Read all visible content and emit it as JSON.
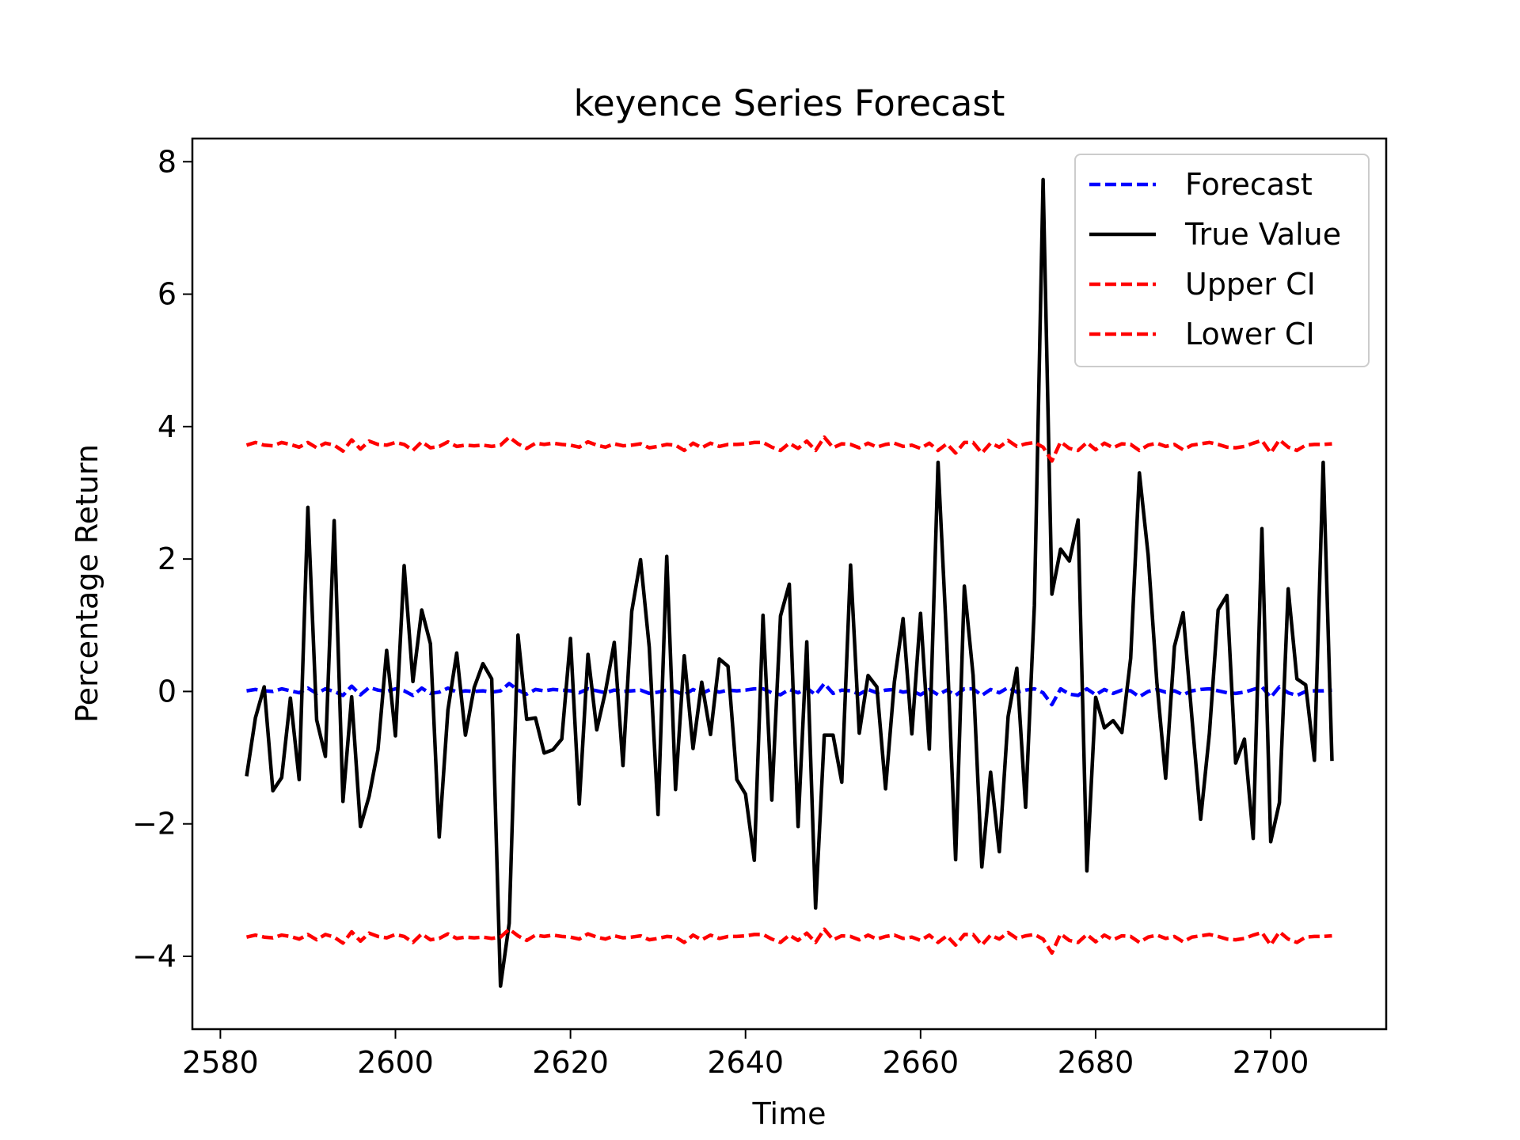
{
  "chart_data": {
    "type": "line",
    "title": "keyence Series Forecast",
    "xlabel": "Time",
    "ylabel": "Percentage Return",
    "xlim": [
      2576.8,
      2713.2
    ],
    "ylim": [
      -5.1,
      8.35
    ],
    "xticks": [
      2580,
      2600,
      2620,
      2640,
      2660,
      2680,
      2700
    ],
    "xtick_labels": [
      "2580",
      "2600",
      "2620",
      "2640",
      "2660",
      "2680",
      "2700"
    ],
    "yticks": [
      -4,
      -2,
      0,
      2,
      4,
      6,
      8
    ],
    "ytick_labels": [
      "−4",
      "−2",
      "0",
      "2",
      "4",
      "6",
      "8"
    ],
    "grid": false,
    "legend_position": "top-right",
    "x": [
      2583,
      2584,
      2585,
      2586,
      2587,
      2588,
      2589,
      2590,
      2591,
      2592,
      2593,
      2594,
      2595,
      2596,
      2597,
      2598,
      2599,
      2600,
      2601,
      2602,
      2603,
      2604,
      2605,
      2606,
      2607,
      2608,
      2609,
      2610,
      2611,
      2612,
      2613,
      2614,
      2615,
      2616,
      2617,
      2618,
      2619,
      2620,
      2621,
      2622,
      2623,
      2624,
      2625,
      2626,
      2627,
      2628,
      2629,
      2630,
      2631,
      2632,
      2633,
      2634,
      2635,
      2636,
      2637,
      2638,
      2639,
      2640,
      2641,
      2642,
      2643,
      2644,
      2645,
      2646,
      2647,
      2648,
      2649,
      2650,
      2651,
      2652,
      2653,
      2654,
      2655,
      2656,
      2657,
      2658,
      2659,
      2660,
      2661,
      2662,
      2663,
      2664,
      2665,
      2666,
      2667,
      2668,
      2669,
      2670,
      2671,
      2672,
      2673,
      2674,
      2675,
      2676,
      2677,
      2678,
      2679,
      2680,
      2681,
      2682,
      2683,
      2684,
      2685,
      2686,
      2687,
      2688,
      2689,
      2690,
      2691,
      2692,
      2693,
      2694,
      2695,
      2696,
      2697,
      2698,
      2699,
      2700,
      2701,
      2702,
      2703,
      2704,
      2705,
      2706,
      2707
    ],
    "series": [
      {
        "name": "Forecast",
        "color": "#0000ff",
        "dash": "dashed",
        "values": [
          0.01,
          0.03,
          0.01,
          0.0,
          0.04,
          0.01,
          -0.02,
          0.05,
          -0.03,
          0.04,
          0.0,
          -0.06,
          0.08,
          -0.05,
          0.06,
          0.02,
          0.0,
          0.04,
          0.01,
          -0.06,
          0.05,
          -0.03,
          -0.01,
          0.05,
          -0.01,
          0.01,
          0.0,
          0.01,
          -0.01,
          0.01,
          0.12,
          0.02,
          -0.04,
          0.03,
          0.01,
          0.03,
          0.02,
          0.01,
          -0.02,
          0.04,
          0.01,
          -0.02,
          0.02,
          0.0,
          0.01,
          0.02,
          -0.03,
          -0.01,
          0.02,
          0.0,
          -0.05,
          0.03,
          -0.03,
          0.03,
          -0.01,
          0.02,
          0.01,
          0.02,
          0.04,
          0.04,
          -0.02,
          -0.05,
          0.03,
          -0.02,
          0.05,
          -0.05,
          0.12,
          -0.03,
          0.02,
          0.01,
          -0.04,
          0.03,
          -0.02,
          0.02,
          0.03,
          -0.01,
          0.01,
          -0.05,
          0.03,
          -0.05,
          0.02,
          -0.06,
          0.04,
          0.04,
          -0.06,
          0.03,
          -0.02,
          0.06,
          -0.01,
          0.02,
          0.04,
          -0.02,
          -0.2,
          0.04,
          -0.04,
          -0.06,
          0.04,
          -0.05,
          0.03,
          -0.03,
          0.02,
          0.01,
          -0.08,
          0.0,
          0.03,
          -0.01,
          0.01,
          -0.05,
          0.01,
          0.03,
          0.04,
          0.01,
          -0.02,
          -0.03,
          -0.01,
          0.03,
          0.07,
          -0.09,
          0.07,
          -0.02,
          -0.06,
          0.0,
          0.01,
          0.01,
          0.02
        ]
      },
      {
        "name": "True Value",
        "color": "#000000",
        "dash": "solid",
        "values": [
          -1.28,
          -0.4,
          0.07,
          -1.5,
          -1.3,
          -0.1,
          -1.33,
          2.78,
          -0.43,
          -0.98,
          2.58,
          -1.66,
          -0.08,
          -2.04,
          -1.58,
          -0.88,
          0.62,
          -0.67,
          1.9,
          0.15,
          1.23,
          0.72,
          -2.2,
          -0.28,
          0.58,
          -0.66,
          0.06,
          0.42,
          0.19,
          -4.45,
          -3.5,
          0.85,
          -0.42,
          -0.4,
          -0.93,
          -0.88,
          -0.72,
          0.8,
          -1.7,
          0.56,
          -0.58,
          0.0,
          0.74,
          -1.12,
          1.21,
          1.99,
          0.67,
          -1.86,
          2.04,
          -1.48,
          0.54,
          -0.86,
          0.14,
          -0.65,
          0.49,
          0.38,
          -1.33,
          -1.55,
          -2.55,
          1.15,
          -1.64,
          1.14,
          1.62,
          -2.04,
          0.75,
          -3.27,
          -0.66,
          -0.66,
          -1.37,
          1.91,
          -0.63,
          0.24,
          0.07,
          -1.47,
          0.14,
          1.1,
          -0.64,
          1.18,
          -0.87,
          3.46,
          0.72,
          -2.54,
          1.59,
          0.24,
          -2.65,
          -1.22,
          -2.42,
          -0.38,
          0.35,
          -1.75,
          1.3,
          7.73,
          1.47,
          2.15,
          1.97,
          2.59,
          -2.71,
          -0.09,
          -0.55,
          -0.44,
          -0.62,
          0.5,
          3.3,
          2.06,
          0.14,
          -1.31,
          0.68,
          1.19,
          -0.4,
          -1.93,
          -0.63,
          1.23,
          1.45,
          -1.08,
          -0.72,
          -2.22,
          2.46,
          -2.27,
          -1.68,
          1.55,
          0.19,
          0.1,
          -1.04,
          3.46,
          -1.05
        ]
      },
      {
        "name": "Upper CI",
        "color": "#ff0000",
        "dash": "dashed",
        "values": [
          3.72,
          3.76,
          3.72,
          3.71,
          3.76,
          3.73,
          3.69,
          3.76,
          3.68,
          3.75,
          3.72,
          3.63,
          3.8,
          3.66,
          3.78,
          3.73,
          3.72,
          3.76,
          3.73,
          3.64,
          3.77,
          3.68,
          3.7,
          3.77,
          3.7,
          3.72,
          3.71,
          3.72,
          3.7,
          3.72,
          3.84,
          3.74,
          3.67,
          3.75,
          3.73,
          3.75,
          3.73,
          3.72,
          3.69,
          3.77,
          3.72,
          3.69,
          3.74,
          3.71,
          3.72,
          3.74,
          3.68,
          3.7,
          3.73,
          3.72,
          3.64,
          3.75,
          3.68,
          3.75,
          3.7,
          3.73,
          3.73,
          3.74,
          3.76,
          3.76,
          3.69,
          3.64,
          3.75,
          3.67,
          3.78,
          3.64,
          3.84,
          3.68,
          3.74,
          3.73,
          3.68,
          3.75,
          3.69,
          3.73,
          3.75,
          3.7,
          3.72,
          3.67,
          3.75,
          3.64,
          3.74,
          3.6,
          3.76,
          3.76,
          3.6,
          3.75,
          3.69,
          3.79,
          3.7,
          3.74,
          3.76,
          3.69,
          3.48,
          3.77,
          3.67,
          3.64,
          3.76,
          3.65,
          3.75,
          3.68,
          3.74,
          3.73,
          3.64,
          3.72,
          3.75,
          3.7,
          3.73,
          3.65,
          3.72,
          3.74,
          3.76,
          3.73,
          3.69,
          3.68,
          3.7,
          3.75,
          3.79,
          3.6,
          3.8,
          3.69,
          3.64,
          3.72,
          3.73,
          3.73,
          3.74
        ]
      },
      {
        "name": "Lower CI",
        "color": "#ff0000",
        "dash": "dashed",
        "values": [
          -3.71,
          -3.68,
          -3.71,
          -3.72,
          -3.68,
          -3.7,
          -3.74,
          -3.67,
          -3.75,
          -3.67,
          -3.71,
          -3.8,
          -3.63,
          -3.77,
          -3.65,
          -3.7,
          -3.72,
          -3.67,
          -3.7,
          -3.79,
          -3.66,
          -3.75,
          -3.73,
          -3.66,
          -3.73,
          -3.71,
          -3.72,
          -3.71,
          -3.73,
          -3.71,
          -3.59,
          -3.69,
          -3.76,
          -3.68,
          -3.7,
          -3.68,
          -3.7,
          -3.71,
          -3.74,
          -3.66,
          -3.71,
          -3.74,
          -3.69,
          -3.72,
          -3.71,
          -3.69,
          -3.75,
          -3.73,
          -3.7,
          -3.71,
          -3.79,
          -3.68,
          -3.75,
          -3.68,
          -3.73,
          -3.7,
          -3.7,
          -3.69,
          -3.67,
          -3.67,
          -3.74,
          -3.79,
          -3.68,
          -3.76,
          -3.65,
          -3.79,
          -3.59,
          -3.75,
          -3.69,
          -3.7,
          -3.75,
          -3.68,
          -3.74,
          -3.7,
          -3.68,
          -3.73,
          -3.71,
          -3.76,
          -3.68,
          -3.79,
          -3.69,
          -3.83,
          -3.67,
          -3.67,
          -3.83,
          -3.68,
          -3.74,
          -3.64,
          -3.73,
          -3.69,
          -3.67,
          -3.74,
          -3.95,
          -3.66,
          -3.76,
          -3.79,
          -3.67,
          -3.78,
          -3.68,
          -3.75,
          -3.69,
          -3.7,
          -3.79,
          -3.71,
          -3.68,
          -3.73,
          -3.7,
          -3.78,
          -3.71,
          -3.69,
          -3.67,
          -3.7,
          -3.74,
          -3.75,
          -3.73,
          -3.68,
          -3.64,
          -3.83,
          -3.63,
          -3.74,
          -3.79,
          -3.71,
          -3.7,
          -3.7,
          -3.69
        ]
      }
    ]
  }
}
